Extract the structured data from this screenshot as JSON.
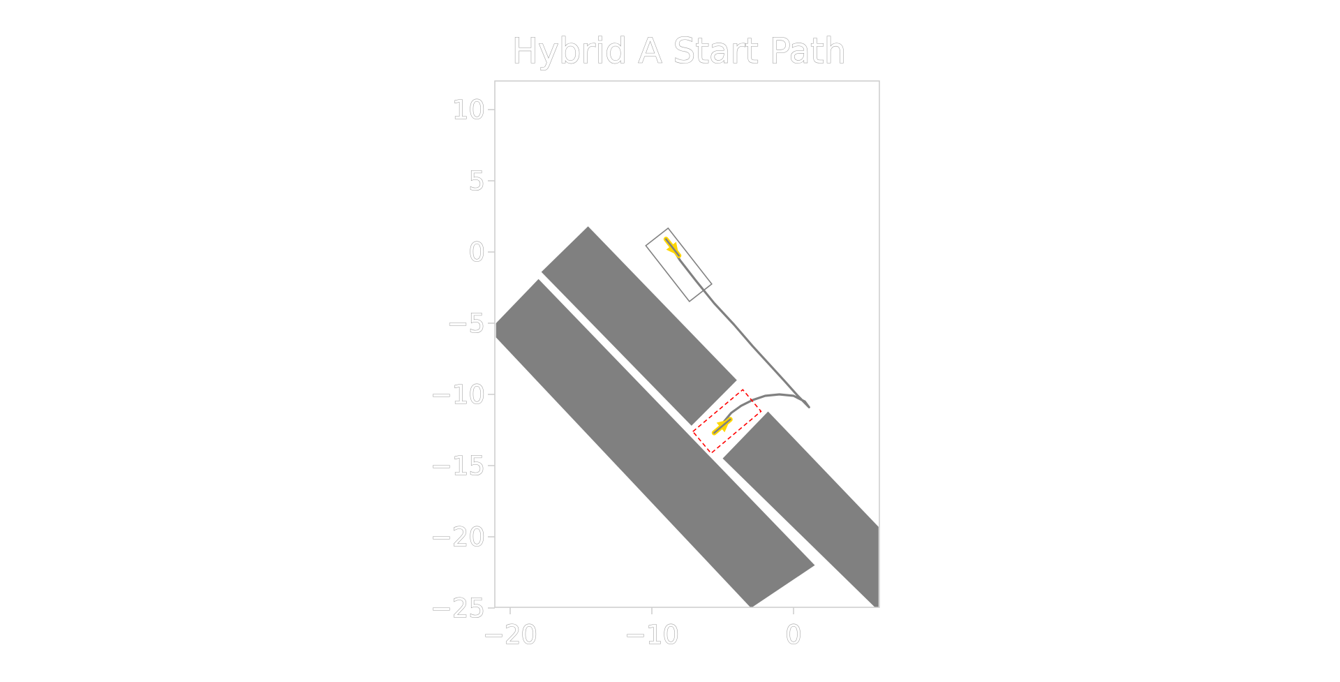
{
  "chart_data": {
    "type": "line",
    "title": "Hybrid A Start Path",
    "xlabel": "",
    "ylabel": "",
    "xlim": [
      -22,
      6
    ],
    "ylim": [
      -25,
      12
    ],
    "xticks": [
      -20,
      -10,
      0
    ],
    "yticks": [
      10,
      5,
      0,
      -5,
      -10,
      -15,
      -20,
      -25
    ],
    "xtick_labels": [
      "−20",
      "−10",
      "0"
    ],
    "ytick_labels": [
      "10",
      "5",
      "0",
      "−5",
      "−10",
      "−15",
      "−20",
      "−25"
    ],
    "grid": false,
    "obstacles": [
      {
        "points": [
          [
            -17.8,
            -1.4
          ],
          [
            -14.5,
            1.8
          ],
          [
            -4,
            -9.0
          ],
          [
            -7.2,
            -12.2
          ]
        ]
      },
      {
        "points": [
          [
            -21,
            -5.0
          ],
          [
            -18,
            -1.9
          ],
          [
            1.5,
            -22.0
          ],
          [
            -3,
            -25.0
          ],
          [
            -21,
            -6.0
          ]
        ]
      },
      {
        "points": [
          [
            -5,
            -14.5
          ],
          [
            -1.8,
            -11.2
          ],
          [
            6,
            -19.3
          ],
          [
            6,
            -25.0
          ],
          [
            5.8,
            -25.0
          ]
        ]
      }
    ],
    "path": {
      "x": [
        -8.9,
        -8.0,
        -6.9,
        -5.6,
        -4.2,
        -2.9,
        -1.7,
        -0.6,
        0.3,
        1.1,
        0.8,
        0.0,
        -1.0,
        -2.0,
        -2.9,
        -3.7,
        -4.4,
        -4.9,
        -5.4
      ],
      "y": [
        0.8,
        -0.6,
        -2.0,
        -3.6,
        -5.1,
        -6.6,
        -7.9,
        -9.1,
        -10.1,
        -10.9,
        -10.5,
        -10.1,
        -10.0,
        -10.1,
        -10.4,
        -10.8,
        -11.3,
        -11.9,
        -12.6
      ]
    },
    "start_pose": {
      "x": -9.0,
      "y": 0.9,
      "heading_deg": -52
    },
    "start_box": {
      "cx": -8.1,
      "cy": -0.9,
      "length": 5.0,
      "width": 2.0,
      "heading_deg": -52
    },
    "goal_pose": {
      "x": -5.6,
      "y": -12.7,
      "heading_deg": 40
    },
    "goal_box": {
      "cx": -4.7,
      "cy": -11.9,
      "length": 4.6,
      "width": 2.0,
      "heading_deg": 40
    },
    "colors": {
      "obstacle": "#808080",
      "path": "#808080",
      "start_box": "#808080",
      "goal_box": "#ff0000",
      "arrow": "#ffd700",
      "axis": "#cccccc",
      "text_outline": "#9a9a9a"
    }
  }
}
